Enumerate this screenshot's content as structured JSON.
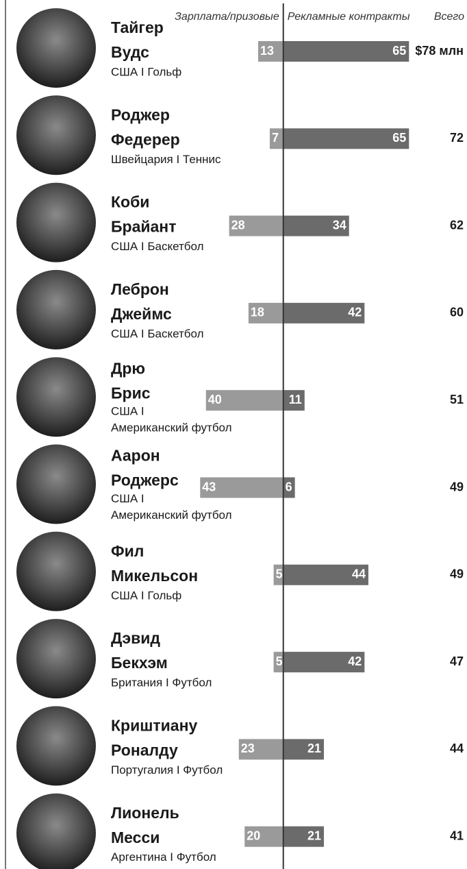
{
  "chart_data": {
    "type": "diverging_bar",
    "headers": [
      "Зарплата/призовые",
      "Рекламные контракты",
      "Всего"
    ],
    "athletes": [
      {
        "name": [
          "Тайгер",
          "Вудс"
        ],
        "info": [
          "США I  Гольф"
        ]
      },
      {
        "name": [
          "Роджер",
          "Федерер"
        ],
        "info": [
          "Швейцария I Теннис"
        ]
      },
      {
        "name": [
          "Коби",
          "Брайант"
        ],
        "info": [
          "США I  Баскетбол"
        ]
      },
      {
        "name": [
          "Леброн",
          "Джеймс"
        ],
        "info": [
          "США I  Баскетбол"
        ]
      },
      {
        "name": [
          "Дрю",
          "Брис"
        ],
        "info": [
          "США I",
          "Американский футбол"
        ]
      },
      {
        "name": [
          "Аарон",
          "Роджерс"
        ],
        "info": [
          "США I",
          "Американский футбол"
        ]
      },
      {
        "name": [
          "Фил",
          "Микельсон"
        ],
        "info": [
          "США I  Гольф"
        ]
      },
      {
        "name": [
          "Дэвид",
          "Бекхэм"
        ],
        "info": [
          "Британия I Футбол"
        ]
      },
      {
        "name": [
          "Криштиану",
          "Роналду"
        ],
        "info": [
          "Португалия I Футбол"
        ]
      },
      {
        "name": [
          "Лионель",
          "Месси"
        ],
        "info": [
          "Аргентина I Футбол"
        ]
      }
    ],
    "series": [
      {
        "name": "Зарплата/призовые",
        "color": "#9a9a9a",
        "values": [
          13,
          7,
          28,
          18,
          40,
          43,
          5,
          5,
          23,
          20
        ]
      },
      {
        "name": "Рекламные контракты",
        "color": "#6b6b6b",
        "values": [
          65,
          65,
          34,
          42,
          11,
          6,
          44,
          42,
          21,
          21
        ]
      }
    ],
    "totals": {
      "name": "Всего",
      "values": [
        78,
        72,
        62,
        60,
        51,
        49,
        49,
        47,
        44,
        41
      ],
      "value_labels": [
        "$78 млн",
        "72",
        "62",
        "60",
        "51",
        "49",
        "49",
        "47",
        "44",
        "41"
      ]
    },
    "xlim": [
      -47,
      95
    ]
  }
}
